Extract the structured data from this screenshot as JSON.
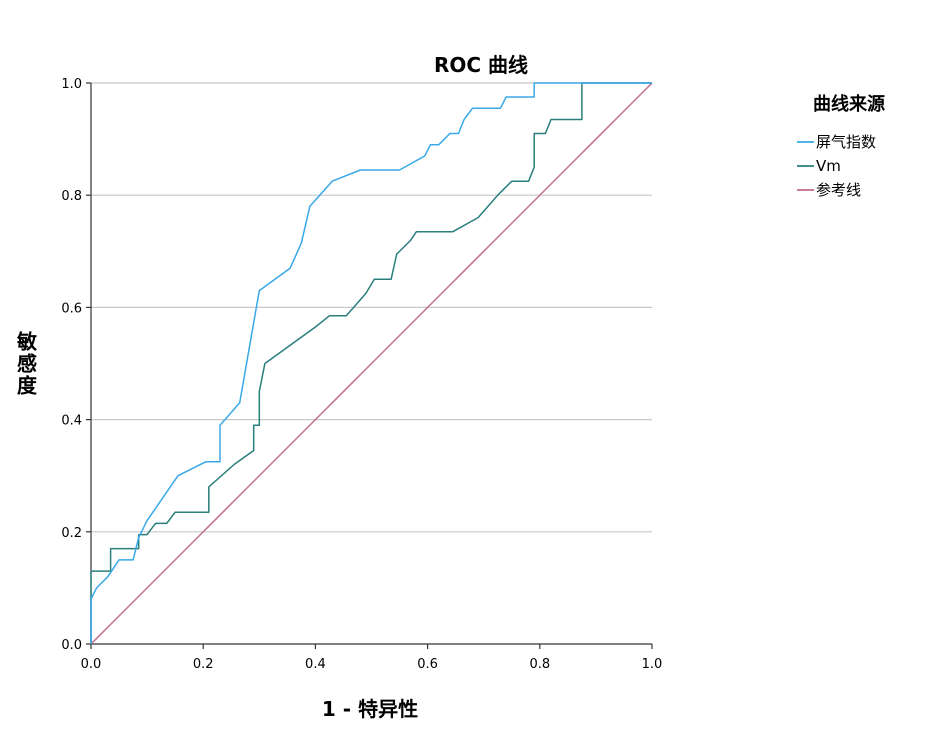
{
  "chart_data": {
    "type": "line",
    "title": "ROC 曲线",
    "xlabel": "1 - 特异性",
    "ylabel": "敏感度",
    "xlim": [
      0,
      1
    ],
    "ylim": [
      0,
      1
    ],
    "x_ticks": [
      "0.0",
      "0.2",
      "0.4",
      "0.6",
      "0.8",
      "1.0"
    ],
    "y_ticks": [
      "0.0",
      "0.2",
      "0.4",
      "0.6",
      "0.8",
      "1.0"
    ],
    "grid": "horizontal",
    "legend_position": "right",
    "legend_title": "曲线来源",
    "series": [
      {
        "name": "屏气指数",
        "color": "#3aa8e8",
        "points": [
          [
            0,
            0
          ],
          [
            0,
            0.08
          ],
          [
            0.01,
            0.1
          ],
          [
            0.03,
            0.12
          ],
          [
            0.05,
            0.15
          ],
          [
            0.075,
            0.15
          ],
          [
            0.085,
            0.19
          ],
          [
            0.1,
            0.22
          ],
          [
            0.155,
            0.3
          ],
          [
            0.205,
            0.325
          ],
          [
            0.23,
            0.325
          ],
          [
            0.23,
            0.39
          ],
          [
            0.265,
            0.43
          ],
          [
            0.3,
            0.63
          ],
          [
            0.355,
            0.67
          ],
          [
            0.375,
            0.715
          ],
          [
            0.39,
            0.78
          ],
          [
            0.43,
            0.825
          ],
          [
            0.48,
            0.845
          ],
          [
            0.55,
            0.845
          ],
          [
            0.595,
            0.87
          ],
          [
            0.605,
            0.89
          ],
          [
            0.62,
            0.89
          ],
          [
            0.64,
            0.91
          ],
          [
            0.655,
            0.91
          ],
          [
            0.665,
            0.935
          ],
          [
            0.68,
            0.955
          ],
          [
            0.73,
            0.955
          ],
          [
            0.74,
            0.975
          ],
          [
            0.79,
            0.975
          ],
          [
            0.79,
            1.0
          ],
          [
            1.0,
            1.0
          ]
        ]
      },
      {
        "name": "Vm",
        "color": "#2a7f7c",
        "points": [
          [
            0,
            0
          ],
          [
            0,
            0.13
          ],
          [
            0.035,
            0.13
          ],
          [
            0.035,
            0.17
          ],
          [
            0.085,
            0.17
          ],
          [
            0.085,
            0.195
          ],
          [
            0.1,
            0.195
          ],
          [
            0.115,
            0.215
          ],
          [
            0.135,
            0.215
          ],
          [
            0.15,
            0.235
          ],
          [
            0.21,
            0.235
          ],
          [
            0.21,
            0.28
          ],
          [
            0.255,
            0.32
          ],
          [
            0.29,
            0.345
          ],
          [
            0.29,
            0.39
          ],
          [
            0.3,
            0.39
          ],
          [
            0.3,
            0.45
          ],
          [
            0.31,
            0.5
          ],
          [
            0.4,
            0.565
          ],
          [
            0.425,
            0.585
          ],
          [
            0.455,
            0.585
          ],
          [
            0.49,
            0.625
          ],
          [
            0.505,
            0.65
          ],
          [
            0.535,
            0.65
          ],
          [
            0.545,
            0.695
          ],
          [
            0.57,
            0.72
          ],
          [
            0.58,
            0.735
          ],
          [
            0.645,
            0.735
          ],
          [
            0.69,
            0.76
          ],
          [
            0.725,
            0.8
          ],
          [
            0.75,
            0.825
          ],
          [
            0.78,
            0.825
          ],
          [
            0.79,
            0.85
          ],
          [
            0.79,
            0.91
          ],
          [
            0.81,
            0.91
          ],
          [
            0.82,
            0.935
          ],
          [
            0.875,
            0.935
          ],
          [
            0.875,
            1.0
          ],
          [
            1.0,
            1.0
          ]
        ]
      },
      {
        "name": "参考线",
        "color": "#c46a8e",
        "points": [
          [
            0,
            0
          ],
          [
            1,
            1
          ]
        ]
      }
    ]
  }
}
